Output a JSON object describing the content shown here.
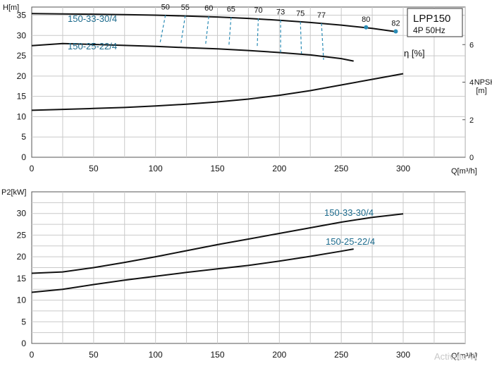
{
  "chart_data": [
    {
      "type": "line",
      "title": "LPP150",
      "subtitle": "4P  50Hz",
      "xlabel": "Q[m³/h]",
      "ylabel": "H[m]",
      "ylabel_right": "NPSH\n[m]",
      "ylabel_right_line1": "NPSH",
      "ylabel_right_line2": "[m]",
      "eta_label": "η [%]",
      "xlim": [
        0,
        300
      ],
      "ylim": [
        0,
        37
      ],
      "ylim_right": [
        0,
        8
      ],
      "x_ticks": [
        "0",
        "50",
        "100",
        "150",
        "200",
        "250",
        "300"
      ],
      "y_ticks": [
        "0",
        "5",
        "10",
        "15",
        "20",
        "25",
        "30",
        "35"
      ],
      "y_ticks_right": [
        "0",
        "2",
        "4",
        "6"
      ],
      "grid": true,
      "series": [
        {
          "name": "150-33-30/4",
          "x": [
            0,
            25,
            50,
            75,
            100,
            125,
            150,
            175,
            200,
            225,
            250,
            275,
            295
          ],
          "y": [
            35.4,
            35.3,
            35.25,
            35.15,
            35.0,
            34.8,
            34.55,
            34.2,
            33.75,
            33.2,
            32.55,
            31.75,
            30.9
          ]
        },
        {
          "name": "150-25-22/4",
          "x": [
            0,
            25,
            50,
            75,
            100,
            125,
            150,
            175,
            200,
            225,
            250,
            260
          ],
          "y": [
            27.5,
            28.0,
            27.8,
            27.55,
            27.3,
            27.0,
            26.7,
            26.3,
            25.8,
            25.2,
            24.3,
            23.7
          ]
        },
        {
          "name": "NPSH",
          "axis": "right",
          "x": [
            0,
            25,
            50,
            75,
            100,
            125,
            150,
            175,
            200,
            225,
            250,
            275,
            300
          ],
          "y": [
            2.5,
            2.55,
            2.6,
            2.65,
            2.73,
            2.83,
            2.95,
            3.1,
            3.3,
            3.55,
            3.85,
            4.15,
            4.45
          ]
        }
      ],
      "efficiency_labels": [
        {
          "text": "50",
          "x": 108,
          "h_top": 35.0,
          "h_bot": 28.3
        },
        {
          "text": "55",
          "x": 124,
          "h_top": 34.9,
          "h_bot": 28.2
        },
        {
          "text": "60",
          "x": 143,
          "h_top": 34.7,
          "h_bot": 27.8
        },
        {
          "text": "65",
          "x": 161,
          "h_top": 34.5,
          "h_bot": 27.6
        },
        {
          "text": "70",
          "x": 183,
          "h_top": 34.2,
          "h_bot": 27.3
        },
        {
          "text": "73",
          "x": 201,
          "h_top": 33.8,
          "h_bot": 25.8
        },
        {
          "text": "75",
          "x": 217,
          "h_top": 33.4,
          "h_bot": 25.5
        },
        {
          "text": "77",
          "x": 234,
          "h_top": 33.0,
          "h_bot": 24.0
        },
        {
          "text": "80",
          "x": 270,
          "h_top": 32.0,
          "point": true
        },
        {
          "text": "82",
          "x": 294,
          "h_top": 31.0,
          "point": true
        }
      ],
      "series_labels": [
        "150-33-30/4",
        "150-25-22/4"
      ]
    },
    {
      "type": "line",
      "xlabel": "Q[m³/h]",
      "ylabel": "P2[kW]",
      "xlim": [
        0,
        300
      ],
      "ylim": [
        0,
        35
      ],
      "x_ticks": [
        "0",
        "50",
        "100",
        "150",
        "200",
        "250",
        "300"
      ],
      "y_ticks": [
        "0",
        "5",
        "10",
        "15",
        "20",
        "25",
        "30"
      ],
      "grid": true,
      "series": [
        {
          "name": "150-33-30/4",
          "x": [
            0,
            25,
            50,
            75,
            100,
            125,
            150,
            175,
            200,
            225,
            250,
            275,
            300
          ],
          "y": [
            16.2,
            16.5,
            17.5,
            18.7,
            20.0,
            21.4,
            22.8,
            24.1,
            25.4,
            26.7,
            28.0,
            29.1,
            29.9
          ]
        },
        {
          "name": "150-25-22/4",
          "x": [
            0,
            25,
            50,
            75,
            100,
            125,
            150,
            175,
            200,
            225,
            250,
            260
          ],
          "y": [
            11.8,
            12.5,
            13.6,
            14.6,
            15.5,
            16.4,
            17.2,
            18.0,
            19.0,
            20.1,
            21.3,
            21.8
          ]
        }
      ]
    }
  ],
  "colors": {
    "curve": "#111111",
    "label": "#1b6a8c",
    "dashed": "#2a8bb5",
    "grid": "#c9c9c9"
  },
  "watermark": "Activate W"
}
